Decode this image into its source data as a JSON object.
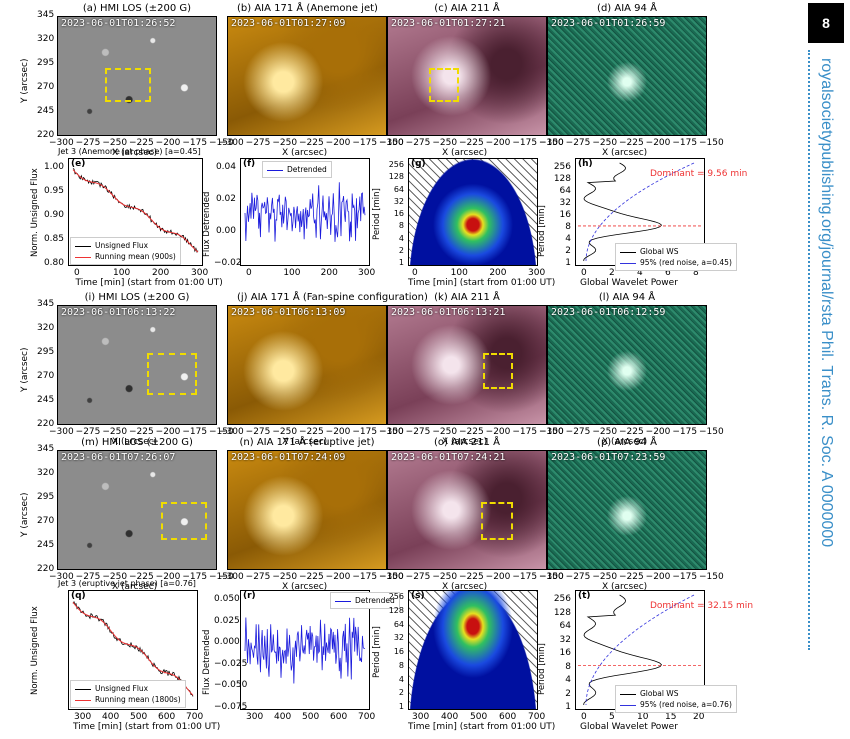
{
  "page_number": "8",
  "sidebar": {
    "journal": "royalsocietypublishing.org/journal/rsta  Phil.  Trans.  R.  Soc.  A 0000000"
  },
  "colors": {
    "hmi": "#8a8a8a",
    "aia171": "#c98a10",
    "aia211": "#8a4a64",
    "aia94": "#1f6a55",
    "box": "#f0dc00",
    "sidebar": "#3a8fc8"
  },
  "row1": {
    "a": {
      "title": "(a) HMI LOS (±200 G)",
      "time": "2023-06-01T01:26:52"
    },
    "b": {
      "title": "(b) AIA 171 Å (Anemone jet)",
      "time": "2023-06-01T01:27:09"
    },
    "c": {
      "title": "(c) AIA 211 Å",
      "time": "2023-06-01T01:27:21"
    },
    "d": {
      "title": "(d) AIA 94 Å",
      "time": "2023-06-01T01:26:59"
    }
  },
  "row3": {
    "i": {
      "title": "(i) HMI LOS (±200 G)",
      "time": "2023-06-01T06:13:22"
    },
    "j": {
      "title": "(j) AIA 171 Å (Fan-spine configuration)",
      "time": "2023-06-01T06:13:09"
    },
    "k": {
      "title": "(k) AIA 211 Å",
      "time": "2023-06-01T06:13:21"
    },
    "l": {
      "title": "(l) AIA 94 Å",
      "time": "2023-06-01T06:12:59"
    }
  },
  "row4": {
    "m": {
      "title": "(m) HMI LOS (±200 G)",
      "time": "2023-06-01T07:26:07"
    },
    "n": {
      "title": "(n) AIA 171 Å (eruptive jet)",
      "time": "2023-06-01T07:24:09"
    },
    "o": {
      "title": "(o) AIA 211 Å",
      "time": "2023-06-01T07:24:21"
    },
    "p": {
      "title": "(p) AIA 94 Å",
      "time": "2023-06-01T07:23:59"
    }
  },
  "axes": {
    "y_label": "Y (arcsec)",
    "x_label": "X (arcsec)",
    "y_ticks": [
      "345",
      "320",
      "295",
      "270",
      "245",
      "220"
    ],
    "x_ticks": [
      "−300",
      "−275",
      "−250",
      "−225",
      "−200",
      "−175",
      "−150"
    ]
  },
  "row2": {
    "e": {
      "label": "(e)",
      "title": "Jet 3 (Anemone jet phase)  [a=0.45]",
      "ylabel": "Norm. Unsigned Flux",
      "xlabel": "Time [min] (start from 01:00 UT)",
      "yticks": [
        "1.00",
        "0.95",
        "0.90",
        "0.85",
        "0.80"
      ],
      "xticks": [
        "0",
        "100",
        "200",
        "300"
      ],
      "legend": [
        "Unsigned Flux",
        "Running mean (900s)"
      ]
    },
    "f": {
      "label": "(f)",
      "ylabel": "Flux Detrended",
      "yticks": [
        "0.04",
        "0.02",
        "0.00",
        "−0.02"
      ],
      "xticks": [
        "0",
        "100",
        "200",
        "300"
      ],
      "legend": [
        "Detrended"
      ]
    },
    "g": {
      "label": "(g)",
      "ylabel": "Period [min]",
      "xlabel": "Time [min] (start from 01:00 UT)",
      "yticks": [
        "256",
        "128",
        "64",
        "32",
        "16",
        "8",
        "4",
        "2",
        "1"
      ],
      "xticks": [
        "0",
        "100",
        "200",
        "300"
      ]
    },
    "h": {
      "label": "(h)",
      "ylabel": "Period [min]",
      "xlabel": "Global Wavelet Power",
      "dominant": "Dominant = 9.56 min",
      "yticks": [
        "256",
        "128",
        "64",
        "32",
        "16",
        "8",
        "4",
        "2",
        "1"
      ],
      "xticks": [
        "0",
        "2",
        "4",
        "6",
        "8"
      ],
      "legend": [
        "Global WS",
        "95% (red noise, a=0.45)"
      ]
    }
  },
  "row5": {
    "q": {
      "label": "(q)",
      "title": "Jet 3 (eruptive jet phase)  [a=0.76]",
      "ylabel": "Norm. Unsigned Flux",
      "xlabel": "Time [min] (start from 01:00 UT)",
      "xticks": [
        "300",
        "400",
        "500",
        "600",
        "700"
      ],
      "legend": [
        "Unsigned Flux",
        "Running mean (1800s)"
      ]
    },
    "r": {
      "label": "(r)",
      "ylabel": "Flux Detrended",
      "yticks": [
        "0.050",
        "0.025",
        "0.000",
        "−0.025",
        "−0.050",
        "−0.075"
      ],
      "xticks": [
        "300",
        "400",
        "500",
        "600",
        "700"
      ],
      "legend": [
        "Detrended"
      ]
    },
    "s": {
      "label": "(s)",
      "ylabel": "Period [min]",
      "xlabel": "Time [min] (start from 01:00 UT)",
      "yticks": [
        "256",
        "128",
        "64",
        "32",
        "16",
        "8",
        "4",
        "2",
        "1"
      ],
      "xticks": [
        "300",
        "400",
        "500",
        "600",
        "700"
      ]
    },
    "t": {
      "label": "(t)",
      "ylabel": "Period [min]",
      "xlabel": "Global Wavelet Power",
      "dominant": "Dominant = 32.15 min",
      "yticks": [
        "256",
        "128",
        "64",
        "32",
        "16",
        "8",
        "4",
        "2",
        "1"
      ],
      "xticks": [
        "0",
        "5",
        "10",
        "15",
        "20"
      ],
      "legend": [
        "Global WS",
        "95% (red noise, a=0.76)"
      ]
    }
  },
  "chart_data": [
    {
      "type": "line",
      "panel": "e",
      "x": [
        0,
        50,
        100,
        150,
        200,
        250,
        300
      ],
      "series": [
        {
          "name": "Unsigned Flux",
          "values": [
            1.0,
            0.97,
            0.93,
            0.9,
            0.92,
            0.87,
            0.77
          ]
        },
        {
          "name": "Running mean (900s)",
          "values": [
            1.0,
            0.97,
            0.93,
            0.9,
            0.92,
            0.87,
            0.78
          ]
        }
      ],
      "xlabel": "Time [min] (start from 01:00 UT)",
      "ylabel": "Norm. Unsigned Flux",
      "ylim": [
        0.76,
        1.01
      ]
    },
    {
      "type": "line",
      "panel": "q",
      "x": [
        300,
        400,
        500,
        600,
        700
      ],
      "series": [
        {
          "name": "Unsigned Flux",
          "values": [
            1.0,
            0.8,
            0.6,
            0.35,
            0.1
          ]
        },
        {
          "name": "Running mean (1800s)",
          "values": [
            1.0,
            0.8,
            0.6,
            0.35,
            0.1
          ]
        }
      ],
      "xlabel": "Time [min] (start from 01:00 UT)",
      "ylabel": "Norm. Unsigned Flux"
    }
  ]
}
